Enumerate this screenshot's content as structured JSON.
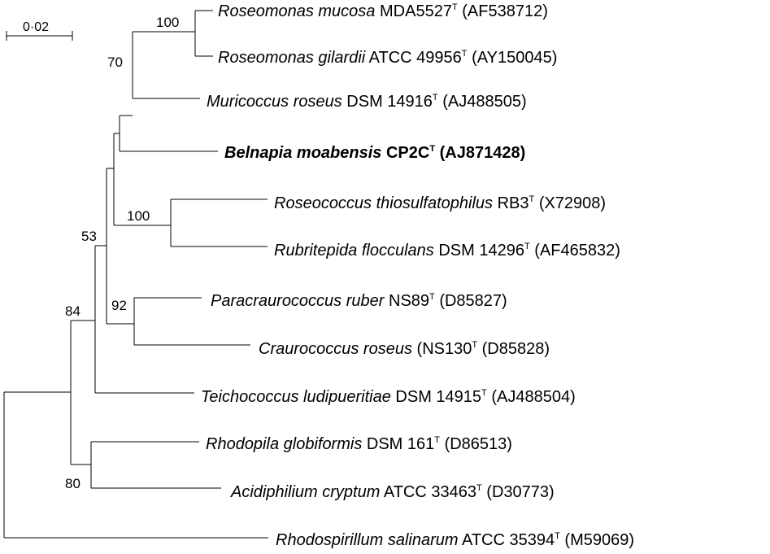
{
  "scale_bar": {
    "label": "0·02"
  },
  "taxa": [
    {
      "genus": "Roseomonas mucosa",
      "strain": "MDA5527",
      "sup": "T",
      "accession": "(AF538712)",
      "bold": false
    },
    {
      "genus": "Roseomonas gilardii",
      "strain": "ATCC 49956",
      "sup": "T",
      "accession": "(AY150045)",
      "bold": false
    },
    {
      "genus": "Muricoccus roseus",
      "strain": "DSM 14916",
      "sup": "T",
      "accession": "(AJ488505)",
      "bold": false
    },
    {
      "genus": "Belnapia moabensis",
      "strain": "CP2C",
      "sup": "T",
      "accession": "(AJ871428)",
      "bold": true
    },
    {
      "genus": "Roseococcus thiosulfatophilus",
      "strain": "RB3",
      "sup": "T",
      "accession": "(X72908)",
      "bold": false
    },
    {
      "genus": "Rubritepida flocculans",
      "strain": "DSM 14296",
      "sup": "T",
      "accession": "(AF465832)",
      "bold": false
    },
    {
      "genus": "Paracraurococcus ruber",
      "strain": "NS89",
      "sup": "T",
      "accession": "(D85827)",
      "bold": false
    },
    {
      "genus": "Craurococcus roseus",
      "strain": "(NS130",
      "sup": "T",
      "accession": "(D85828)",
      "bold": false
    },
    {
      "genus": "Teichococcus ludipueritiae",
      "strain": "DSM 14915",
      "sup": "T",
      "accession": "(AJ488504)",
      "bold": false
    },
    {
      "genus": "Rhodopila globiformis",
      "strain": "DSM 161",
      "sup": "T",
      "accession": "(D86513)",
      "bold": false
    },
    {
      "genus": "Acidiphilium cryptum",
      "strain": "ATCC 33463",
      "sup": "T",
      "accession": "(D30773)",
      "bold": false
    },
    {
      "genus": "Rhodospirillum salinarum",
      "strain": " ATCC 35394",
      "sup": "T",
      "accession": "(M59069)",
      "bold": false
    }
  ],
  "bootstrap": [
    {
      "value": "100"
    },
    {
      "value": "70"
    },
    {
      "value": "100"
    },
    {
      "value": "53"
    },
    {
      "value": "92"
    },
    {
      "value": "84"
    },
    {
      "value": "80"
    }
  ]
}
